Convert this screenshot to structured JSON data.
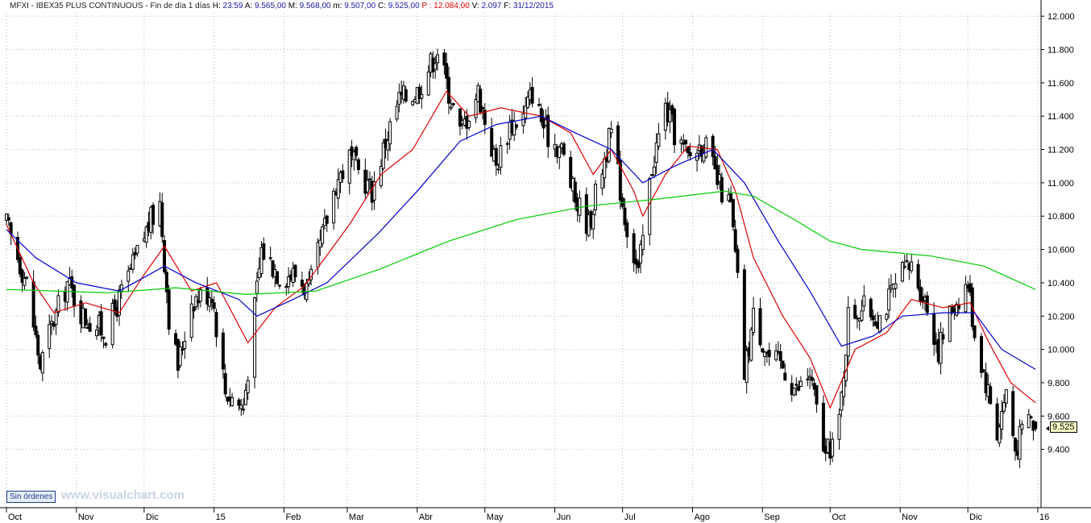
{
  "header": {
    "symbol": "MFXI - IBEX35 PLUS CONTINUOUS - Fin de día 1 días",
    "h_label": "H:",
    "h_value": "23:59",
    "a_label": "A:",
    "a_value": "9.565,00",
    "m_label": "M:",
    "m_value": "9.568,00",
    "min_label": "m:",
    "min_value": "9.507,00",
    "c_label": "C:",
    "c_value": "9.525,00",
    "p_label": "P :",
    "p_value": "12.084,00",
    "v_label": "V:",
    "v_value": "2.097",
    "f_label": "F:",
    "f_value": "31/12/2015"
  },
  "footer": {
    "orders_button": "Sin órdenes",
    "watermark": "www.visualchart.com"
  },
  "last_price_label": "9.525",
  "colors": {
    "candle": "#000000",
    "ma_short": "#e00000",
    "ma_medium": "#0000d0",
    "ma_long": "#00cc00",
    "grid": "#b8b8b8"
  },
  "chart_data": {
    "type": "candlestick",
    "x_tick_labels": [
      "Oct",
      "Nov",
      "Dic",
      "15",
      "Feb",
      "Mar",
      "Abr",
      "May",
      "Jun",
      "Jul",
      "Ago",
      "Sep",
      "Oct",
      "Nov",
      "Dic",
      "16"
    ],
    "x_tick_dates": [
      "2014-10-01",
      "2014-11-01",
      "2014-12-01",
      "2015-01-01",
      "2015-02-01",
      "2015-03-01",
      "2015-04-01",
      "2015-05-01",
      "2015-06-01",
      "2015-07-01",
      "2015-08-01",
      "2015-09-01",
      "2015-10-01",
      "2015-11-01",
      "2015-12-01",
      "2016-01-01"
    ],
    "y_tick_labels": [
      "12.000",
      "11.800",
      "11.600",
      "11.400",
      "11.200",
      "11.000",
      "10.800",
      "10.600",
      "10.400",
      "10.200",
      "10.000",
      "9.800",
      "9.600",
      "9.400"
    ],
    "ylim": [
      9.05,
      12.02
    ],
    "y_unit_scale": 1000,
    "grid": true,
    "close_keypoints": [
      {
        "date": "2014-10-01",
        "close": 10.75
      },
      {
        "date": "2014-10-10",
        "close": 10.4
      },
      {
        "date": "2014-10-16",
        "close": 9.9
      },
      {
        "date": "2014-10-20",
        "close": 10.1
      },
      {
        "date": "2014-10-28",
        "close": 10.4
      },
      {
        "date": "2014-11-04",
        "close": 10.2
      },
      {
        "date": "2014-11-14",
        "close": 10.1
      },
      {
        "date": "2014-11-26",
        "close": 10.5
      },
      {
        "date": "2014-12-03",
        "close": 10.75
      },
      {
        "date": "2014-12-08",
        "close": 10.88
      },
      {
        "date": "2014-12-12",
        "close": 10.2
      },
      {
        "date": "2014-12-16",
        "close": 9.9
      },
      {
        "date": "2014-12-22",
        "close": 10.3
      },
      {
        "date": "2014-12-31",
        "close": 10.35
      },
      {
        "date": "2015-01-06",
        "close": 9.75
      },
      {
        "date": "2015-01-14",
        "close": 9.65
      },
      {
        "date": "2015-01-22",
        "close": 10.6
      },
      {
        "date": "2015-01-30",
        "close": 10.45
      },
      {
        "date": "2015-02-06",
        "close": 10.45
      },
      {
        "date": "2015-02-12",
        "close": 10.35
      },
      {
        "date": "2015-02-24",
        "close": 11.0
      },
      {
        "date": "2015-03-02",
        "close": 11.15
      },
      {
        "date": "2015-03-12",
        "close": 10.95
      },
      {
        "date": "2015-03-18",
        "close": 11.25
      },
      {
        "date": "2015-03-24",
        "close": 11.5
      },
      {
        "date": "2015-04-01",
        "close": 11.55
      },
      {
        "date": "2015-04-10",
        "close": 11.8
      },
      {
        "date": "2015-04-14",
        "close": 11.6
      },
      {
        "date": "2015-04-20",
        "close": 11.3
      },
      {
        "date": "2015-04-28",
        "close": 11.55
      },
      {
        "date": "2015-05-06",
        "close": 11.1
      },
      {
        "date": "2015-05-12",
        "close": 11.35
      },
      {
        "date": "2015-05-18",
        "close": 11.4
      },
      {
        "date": "2015-05-22",
        "close": 11.55
      },
      {
        "date": "2015-05-28",
        "close": 11.3
      },
      {
        "date": "2015-06-04",
        "close": 11.2
      },
      {
        "date": "2015-06-10",
        "close": 10.9
      },
      {
        "date": "2015-06-16",
        "close": 10.75
      },
      {
        "date": "2015-06-22",
        "close": 11.1
      },
      {
        "date": "2015-06-26",
        "close": 11.3
      },
      {
        "date": "2015-07-02",
        "close": 10.8
      },
      {
        "date": "2015-07-08",
        "close": 10.45
      },
      {
        "date": "2015-07-14",
        "close": 11.1
      },
      {
        "date": "2015-07-20",
        "close": 11.45
      },
      {
        "date": "2015-07-24",
        "close": 11.3
      },
      {
        "date": "2015-07-30",
        "close": 11.15
      },
      {
        "date": "2015-08-06",
        "close": 11.25
      },
      {
        "date": "2015-08-12",
        "close": 11.0
      },
      {
        "date": "2015-08-18",
        "close": 10.85
      },
      {
        "date": "2015-08-21",
        "close": 10.4
      },
      {
        "date": "2015-08-24",
        "close": 9.85
      },
      {
        "date": "2015-08-28",
        "close": 10.2
      },
      {
        "date": "2015-09-04",
        "close": 9.95
      },
      {
        "date": "2015-09-10",
        "close": 9.9
      },
      {
        "date": "2015-09-16",
        "close": 9.75
      },
      {
        "date": "2015-09-22",
        "close": 9.85
      },
      {
        "date": "2015-09-29",
        "close": 9.35
      },
      {
        "date": "2015-10-05",
        "close": 9.55
      },
      {
        "date": "2015-10-09",
        "close": 10.2
      },
      {
        "date": "2015-10-15",
        "close": 10.25
      },
      {
        "date": "2015-10-23",
        "close": 10.2
      },
      {
        "date": "2015-11-02",
        "close": 10.45
      },
      {
        "date": "2015-11-06",
        "close": 10.5
      },
      {
        "date": "2015-11-12",
        "close": 10.3
      },
      {
        "date": "2015-11-18",
        "close": 10.0
      },
      {
        "date": "2015-11-24",
        "close": 10.25
      },
      {
        "date": "2015-12-01",
        "close": 10.4
      },
      {
        "date": "2015-12-04",
        "close": 10.1
      },
      {
        "date": "2015-12-10",
        "close": 9.75
      },
      {
        "date": "2015-12-14",
        "close": 9.5
      },
      {
        "date": "2015-12-18",
        "close": 9.75
      },
      {
        "date": "2015-12-22",
        "close": 9.4
      },
      {
        "date": "2015-12-28",
        "close": 9.6
      },
      {
        "date": "2015-12-31",
        "close": 9.525
      }
    ],
    "last_candle": {
      "date": "2015-12-31",
      "open": 9.565,
      "high": 9.568,
      "low": 9.507,
      "close": 9.525,
      "volume": 2097
    },
    "series": [
      {
        "color": "red",
        "kind": "moving-average",
        "values": [
          {
            "date": "2014-10-01",
            "value": 10.75
          },
          {
            "date": "2014-10-13",
            "value": 10.4
          },
          {
            "date": "2014-10-22",
            "value": 10.22
          },
          {
            "date": "2014-11-05",
            "value": 10.28
          },
          {
            "date": "2014-11-20",
            "value": 10.22
          },
          {
            "date": "2014-12-01",
            "value": 10.45
          },
          {
            "date": "2014-12-10",
            "value": 10.62
          },
          {
            "date": "2014-12-22",
            "value": 10.35
          },
          {
            "date": "2015-01-02",
            "value": 10.4
          },
          {
            "date": "2015-01-16",
            "value": 10.04
          },
          {
            "date": "2015-01-28",
            "value": 10.25
          },
          {
            "date": "2015-02-10",
            "value": 10.38
          },
          {
            "date": "2015-03-02",
            "value": 10.75
          },
          {
            "date": "2015-03-16",
            "value": 11.05
          },
          {
            "date": "2015-03-30",
            "value": 11.2
          },
          {
            "date": "2015-04-14",
            "value": 11.55
          },
          {
            "date": "2015-04-24",
            "value": 11.4
          },
          {
            "date": "2015-05-08",
            "value": 11.45
          },
          {
            "date": "2015-05-26",
            "value": 11.4
          },
          {
            "date": "2015-06-08",
            "value": 11.3
          },
          {
            "date": "2015-06-18",
            "value": 11.05
          },
          {
            "date": "2015-06-26",
            "value": 11.2
          },
          {
            "date": "2015-07-06",
            "value": 10.95
          },
          {
            "date": "2015-07-10",
            "value": 10.8
          },
          {
            "date": "2015-07-20",
            "value": 11.05
          },
          {
            "date": "2015-07-30",
            "value": 11.22
          },
          {
            "date": "2015-08-12",
            "value": 11.2
          },
          {
            "date": "2015-08-20",
            "value": 10.95
          },
          {
            "date": "2015-08-28",
            "value": 10.55
          },
          {
            "date": "2015-09-10",
            "value": 10.2
          },
          {
            "date": "2015-09-22",
            "value": 9.95
          },
          {
            "date": "2015-10-01",
            "value": 9.65
          },
          {
            "date": "2015-10-12",
            "value": 10.0
          },
          {
            "date": "2015-10-26",
            "value": 10.1
          },
          {
            "date": "2015-11-06",
            "value": 10.3
          },
          {
            "date": "2015-11-20",
            "value": 10.25
          },
          {
            "date": "2015-12-02",
            "value": 10.28
          },
          {
            "date": "2015-12-10",
            "value": 10.05
          },
          {
            "date": "2015-12-20",
            "value": 9.8
          },
          {
            "date": "2015-12-31",
            "value": 9.68
          }
        ]
      },
      {
        "color": "blue",
        "kind": "moving-average",
        "values": [
          {
            "date": "2014-10-01",
            "value": 10.72
          },
          {
            "date": "2014-10-14",
            "value": 10.55
          },
          {
            "date": "2014-11-01",
            "value": 10.4
          },
          {
            "date": "2014-11-20",
            "value": 10.35
          },
          {
            "date": "2014-12-10",
            "value": 10.5
          },
          {
            "date": "2014-12-24",
            "value": 10.4
          },
          {
            "date": "2015-01-12",
            "value": 10.3
          },
          {
            "date": "2015-01-20",
            "value": 10.2
          },
          {
            "date": "2015-02-05",
            "value": 10.3
          },
          {
            "date": "2015-02-20",
            "value": 10.4
          },
          {
            "date": "2015-03-15",
            "value": 10.7
          },
          {
            "date": "2015-04-01",
            "value": 10.95
          },
          {
            "date": "2015-04-20",
            "value": 11.25
          },
          {
            "date": "2015-05-06",
            "value": 11.35
          },
          {
            "date": "2015-05-26",
            "value": 11.4
          },
          {
            "date": "2015-06-10",
            "value": 11.3
          },
          {
            "date": "2015-06-26",
            "value": 11.2
          },
          {
            "date": "2015-07-10",
            "value": 11.0
          },
          {
            "date": "2015-07-24",
            "value": 11.1
          },
          {
            "date": "2015-08-10",
            "value": 11.2
          },
          {
            "date": "2015-08-24",
            "value": 11.0
          },
          {
            "date": "2015-09-08",
            "value": 10.65
          },
          {
            "date": "2015-09-22",
            "value": 10.35
          },
          {
            "date": "2015-10-06",
            "value": 10.02
          },
          {
            "date": "2015-10-20",
            "value": 10.08
          },
          {
            "date": "2015-11-02",
            "value": 10.2
          },
          {
            "date": "2015-11-20",
            "value": 10.22
          },
          {
            "date": "2015-12-04",
            "value": 10.22
          },
          {
            "date": "2015-12-16",
            "value": 10.0
          },
          {
            "date": "2015-12-31",
            "value": 9.88
          }
        ]
      },
      {
        "color": "green",
        "kind": "moving-average",
        "values": [
          {
            "date": "2014-10-01",
            "value": 10.36
          },
          {
            "date": "2014-11-15",
            "value": 10.34
          },
          {
            "date": "2014-12-15",
            "value": 10.37
          },
          {
            "date": "2015-01-15",
            "value": 10.33
          },
          {
            "date": "2015-02-15",
            "value": 10.35
          },
          {
            "date": "2015-03-15",
            "value": 10.48
          },
          {
            "date": "2015-04-15",
            "value": 10.65
          },
          {
            "date": "2015-05-15",
            "value": 10.78
          },
          {
            "date": "2015-06-15",
            "value": 10.86
          },
          {
            "date": "2015-07-15",
            "value": 10.9
          },
          {
            "date": "2015-08-15",
            "value": 10.95
          },
          {
            "date": "2015-08-28",
            "value": 10.92
          },
          {
            "date": "2015-09-15",
            "value": 10.78
          },
          {
            "date": "2015-10-01",
            "value": 10.65
          },
          {
            "date": "2015-10-15",
            "value": 10.6
          },
          {
            "date": "2015-11-15",
            "value": 10.56
          },
          {
            "date": "2015-12-08",
            "value": 10.5
          },
          {
            "date": "2015-12-31",
            "value": 10.36
          }
        ]
      }
    ]
  }
}
